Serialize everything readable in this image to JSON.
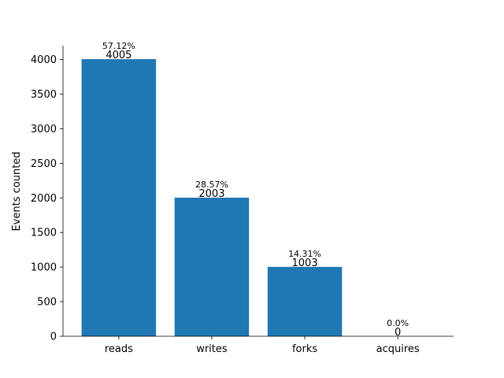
{
  "chart_data": {
    "type": "bar",
    "categories": [
      "reads",
      "writes",
      "forks",
      "acquires"
    ],
    "values": [
      4005,
      2003,
      1003,
      0
    ],
    "value_labels": [
      "4005",
      "2003",
      "1003",
      "0"
    ],
    "percent_labels": [
      "57.12%",
      "28.57%",
      "14.31%",
      "0.0%"
    ],
    "ylabel": "Events counted",
    "xlabel": "",
    "ylim": [
      0,
      4200
    ],
    "yticks": [
      0,
      500,
      1000,
      1500,
      2000,
      2500,
      3000,
      3500,
      4000
    ],
    "ytick_labels": [
      "0",
      "500",
      "1000",
      "1500",
      "2000",
      "2500",
      "3000",
      "3500",
      "4000"
    ],
    "bar_color": "#1f77b4",
    "grid": false,
    "legend": "none"
  }
}
